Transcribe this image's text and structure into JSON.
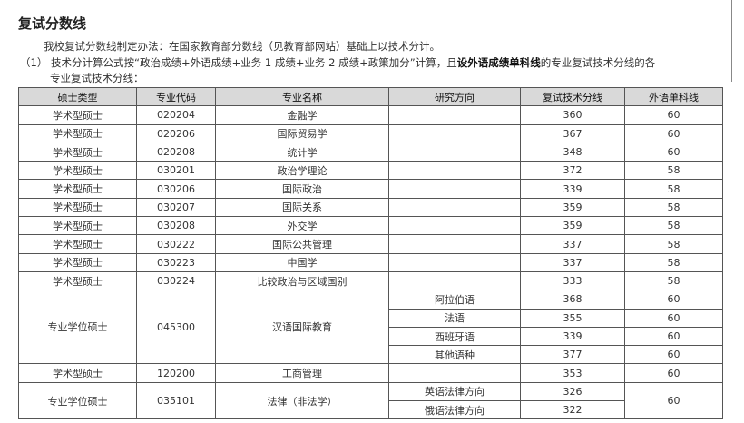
{
  "title": "复试分数线",
  "intro": "我校复试分数线制定办法：在国家教育部分数线（见教育部网站）基础上以技术分计。",
  "item1": {
    "number": "（1）",
    "text_a": "技术分计算公式按“政治成绩+外语成绩+业务 1 成绩+业务 2 成绩+政策加分”计算，且",
    "text_bold": "设外语成绩单科线",
    "text_b": "的专业复试技术分线的各",
    "text_c": "专业复试技术分线："
  },
  "table": {
    "headers": [
      "硕士类型",
      "专业代码",
      "专业名称",
      "研究方向",
      "复试技术分线",
      "外语单科线"
    ],
    "rows": [
      {
        "type": "学术型硕士",
        "code": "020204",
        "name": "金融学",
        "direction": "",
        "score": "360",
        "lang": "60"
      },
      {
        "type": "学术型硕士",
        "code": "020206",
        "name": "国际贸易学",
        "direction": "",
        "score": "367",
        "lang": "60"
      },
      {
        "type": "学术型硕士",
        "code": "020208",
        "name": "统计学",
        "direction": "",
        "score": "348",
        "lang": "60"
      },
      {
        "type": "学术型硕士",
        "code": "030201",
        "name": "政治学理论",
        "direction": "",
        "score": "372",
        "lang": "58"
      },
      {
        "type": "学术型硕士",
        "code": "030206",
        "name": "国际政治",
        "direction": "",
        "score": "339",
        "lang": "58"
      },
      {
        "type": "学术型硕士",
        "code": "030207",
        "name": "国际关系",
        "direction": "",
        "score": "359",
        "lang": "58"
      },
      {
        "type": "学术型硕士",
        "code": "030208",
        "name": "外交学",
        "direction": "",
        "score": "359",
        "lang": "58"
      },
      {
        "type": "学术型硕士",
        "code": "030222",
        "name": "国际公共管理",
        "direction": "",
        "score": "337",
        "lang": "58"
      },
      {
        "type": "学术型硕士",
        "code": "030223",
        "name": "中国学",
        "direction": "",
        "score": "337",
        "lang": "58"
      },
      {
        "type": "学术型硕士",
        "code": "030224",
        "name": "比较政治与区域国别",
        "direction": "",
        "score": "333",
        "lang": "58"
      }
    ],
    "group1": {
      "type": "专业学位硕士",
      "code": "045300",
      "name": "汉语国际教育",
      "subs": [
        {
          "direction": "阿拉伯语",
          "score": "368",
          "lang": "60"
        },
        {
          "direction": "法语",
          "score": "355",
          "lang": "60"
        },
        {
          "direction": "西班牙语",
          "score": "339",
          "lang": "60"
        },
        {
          "direction": "其他语种",
          "score": "377",
          "lang": "60"
        }
      ]
    },
    "row_mba": {
      "type": "学术型硕士",
      "code": "120200",
      "name": "工商管理",
      "direction": "",
      "score": "353",
      "lang": "60"
    },
    "group2": {
      "type": "专业学位硕士",
      "code": "035101",
      "name": "法律（非法学）",
      "lang": "60",
      "subs": [
        {
          "direction": "英语法律方向",
          "score": "326"
        },
        {
          "direction": "俄语法律方向",
          "score": "322"
        }
      ]
    }
  }
}
